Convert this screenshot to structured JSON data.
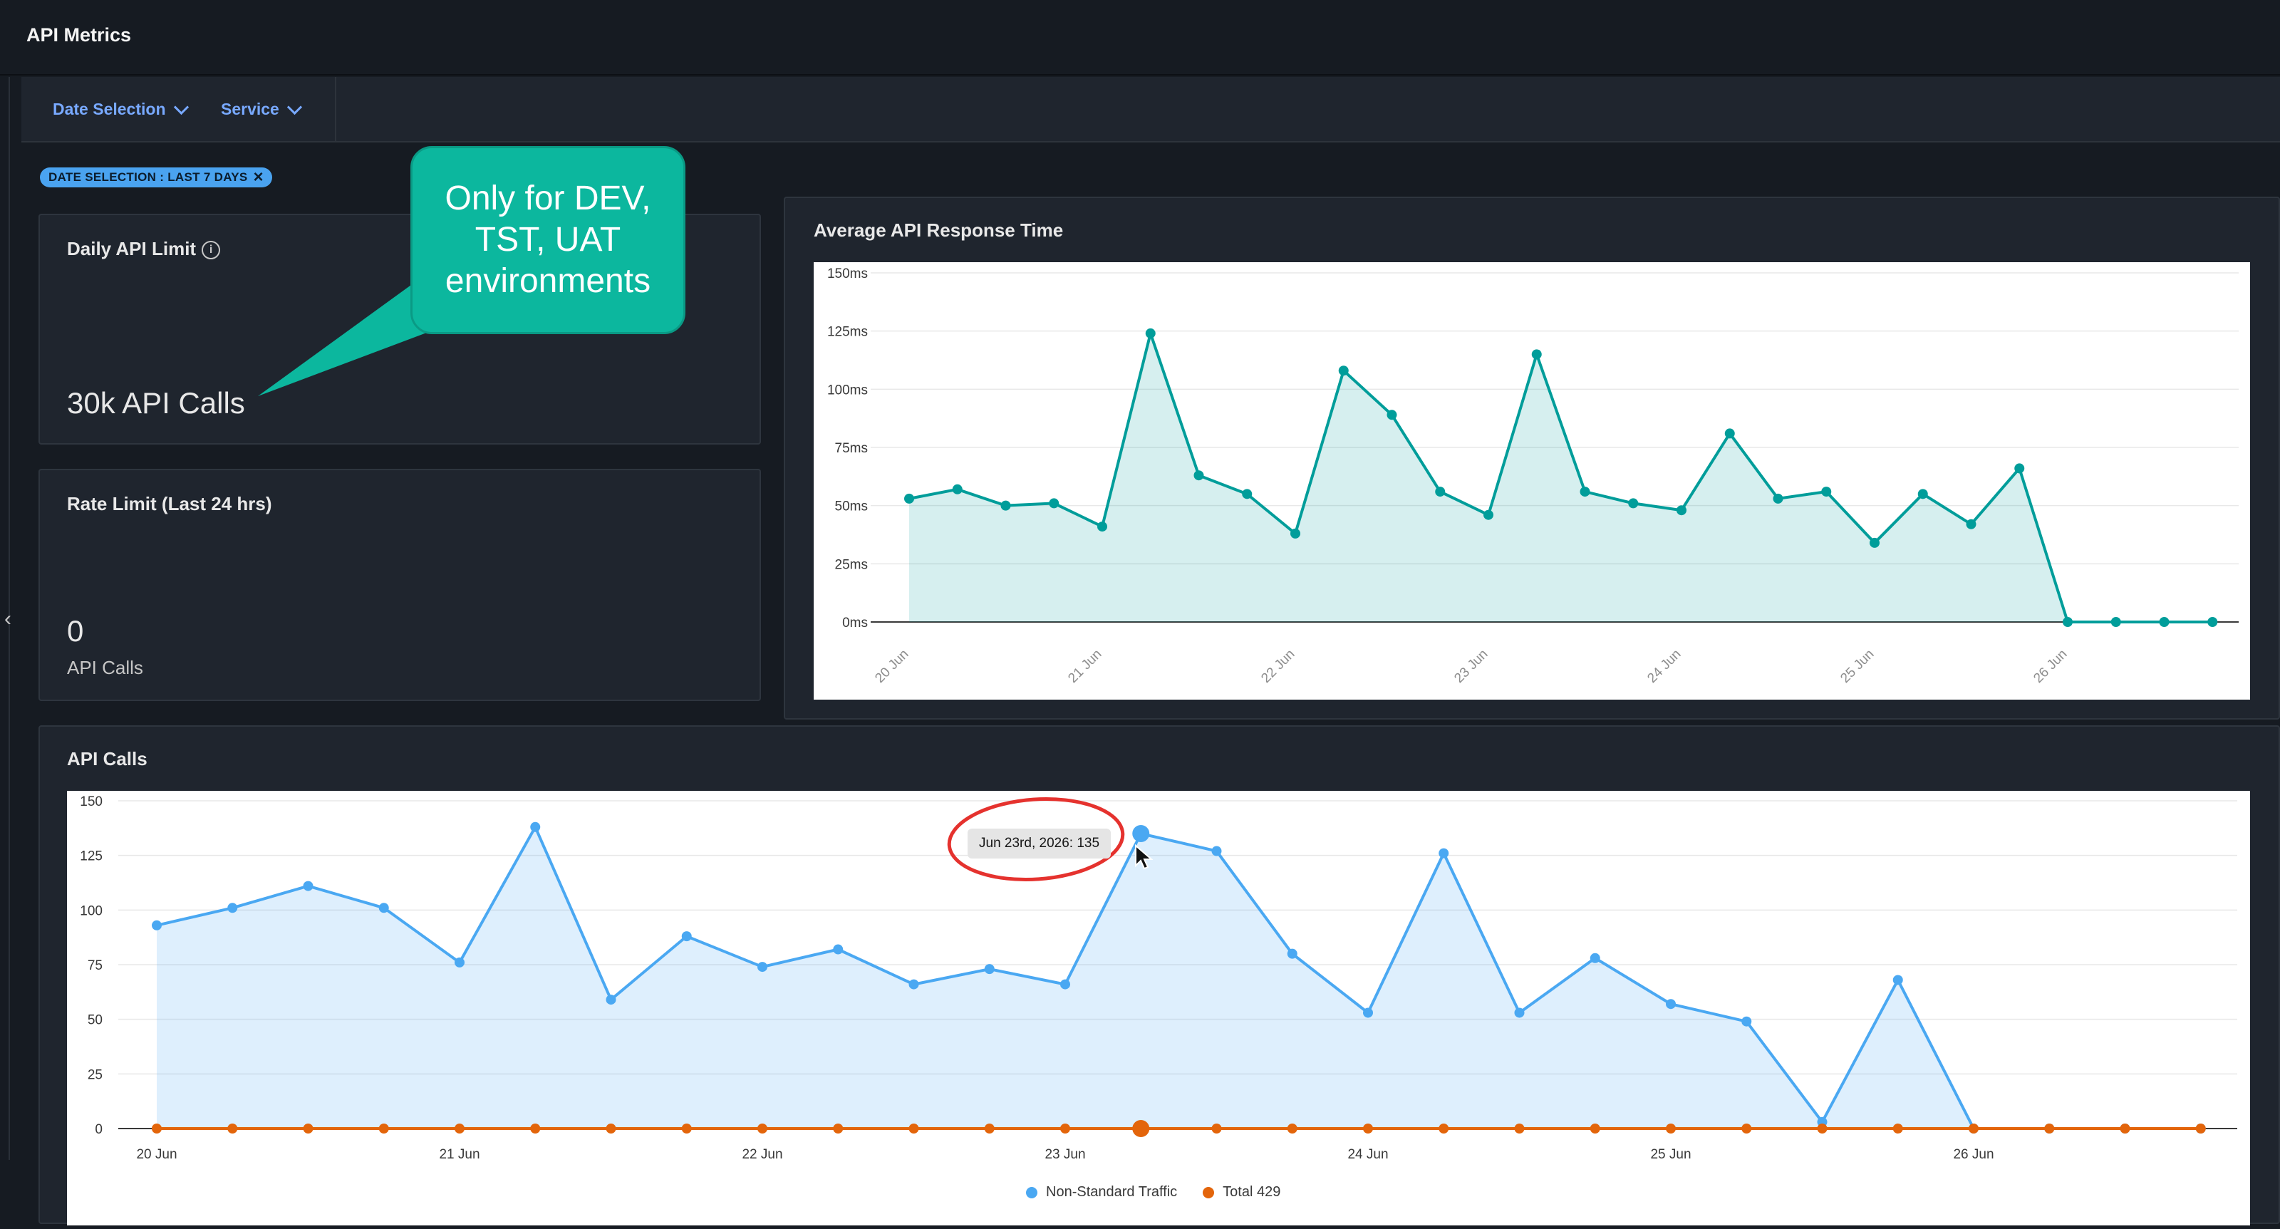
{
  "app": {
    "title": "API Metrics"
  },
  "filters": {
    "date_label": "Date Selection",
    "service_label": "Service"
  },
  "chip": {
    "label": "DATE SELECTION : LAST 7 DAYS"
  },
  "callout": {
    "text": "Only for DEV, TST, UAT environments"
  },
  "daily_limit": {
    "title": "Daily API Limit",
    "value": "30k API Calls"
  },
  "rate_limit": {
    "title": "Rate Limit (Last 24 hrs)",
    "value": "0",
    "unit": "API Calls"
  },
  "colors": {
    "teal": "#009d9a",
    "blue": "#4aa8f2",
    "orange": "#e3650b",
    "callout": "#0cb79e",
    "chip": "#4aa3f0",
    "link": "#78a9ff"
  },
  "icons": {
    "info": "info-icon",
    "chevron": "chevron-down-icon",
    "close": "close-icon",
    "collapse": "chevron-left-icon"
  },
  "chart_data": [
    {
      "type": "area",
      "title": "Average API Response Time",
      "y_ticks": [
        "0ms",
        "25ms",
        "50ms",
        "75ms",
        "100ms",
        "125ms",
        "150ms"
      ],
      "ylim": [
        0,
        150
      ],
      "x_ticks": [
        "20 Jun",
        "21 Jun",
        "22 Jun",
        "23 Jun",
        "24 Jun",
        "25 Jun",
        "26 Jun"
      ],
      "x": [
        0,
        0.25,
        0.5,
        0.75,
        1,
        1.25,
        1.5,
        1.75,
        2,
        2.25,
        2.5,
        2.75,
        3,
        3.25,
        3.5,
        3.75,
        4,
        4.25,
        4.5,
        4.75,
        5,
        5.25,
        5.5,
        5.75,
        6,
        6.25,
        6.5,
        6.75
      ],
      "series": [
        {
          "values": [
            53,
            57,
            50,
            51,
            41,
            124,
            63,
            55,
            38,
            108,
            89,
            56,
            46,
            115,
            56,
            51,
            48,
            81,
            53,
            56,
            34,
            55,
            42,
            66,
            0,
            0,
            0,
            0
          ]
        }
      ],
      "grid": true
    },
    {
      "type": "area",
      "title": "API Calls",
      "y_ticks": [
        "0",
        "25",
        "50",
        "75",
        "100",
        "125",
        "150"
      ],
      "ylim": [
        0,
        150
      ],
      "x_ticks": [
        "20 Jun",
        "21 Jun",
        "22 Jun",
        "23 Jun",
        "24 Jun",
        "25 Jun",
        "26 Jun"
      ],
      "x": [
        0,
        0.25,
        0.5,
        0.75,
        1,
        1.25,
        1.5,
        1.75,
        2,
        2.25,
        2.5,
        2.75,
        3,
        3.25,
        3.5,
        3.75,
        4,
        4.25,
        4.5,
        4.75,
        5,
        5.25,
        5.5,
        5.75,
        6,
        6.25,
        6.5,
        6.75
      ],
      "series": [
        {
          "name": "Non-Standard Traffic",
          "values": [
            93,
            101,
            111,
            101,
            76,
            138,
            59,
            88,
            74,
            82,
            66,
            73,
            66,
            135,
            127,
            80,
            53,
            126,
            53,
            78,
            57,
            49,
            3,
            68,
            0,
            0,
            0,
            0
          ]
        },
        {
          "name": "Total 429",
          "values": [
            0,
            0,
            0,
            0,
            0,
            0,
            0,
            0,
            0,
            0,
            0,
            0,
            0,
            0,
            0,
            0,
            0,
            0,
            0,
            0,
            0,
            0,
            0,
            0,
            0,
            0,
            0,
            0
          ]
        }
      ],
      "tooltip": "Jun 23rd, 2026: 135",
      "legend": "bottom",
      "grid": true
    }
  ]
}
